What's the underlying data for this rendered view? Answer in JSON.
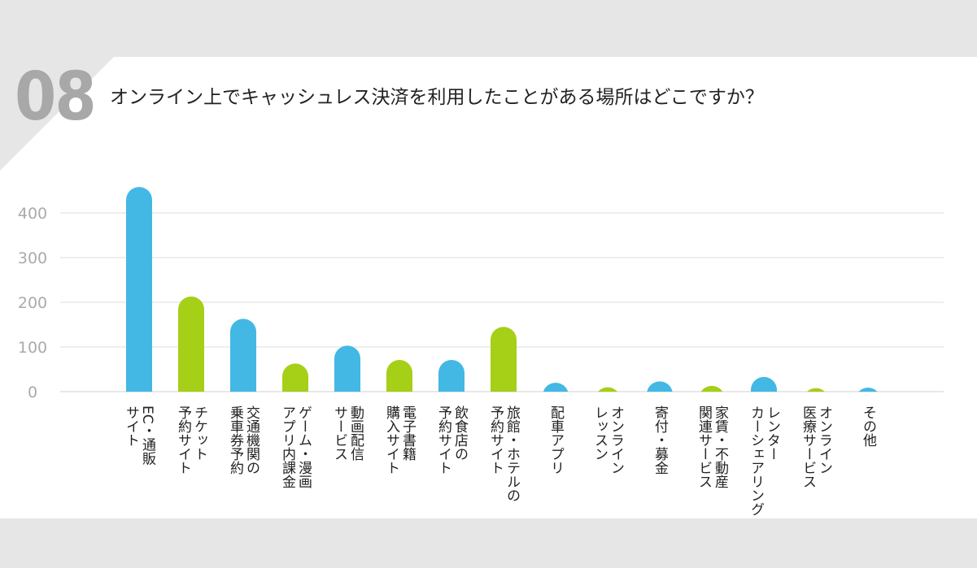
{
  "header": {
    "question_number": "08",
    "question": "オンライン上でキャッシュレス決済を利用したことがある場所はどこですか？"
  },
  "colors": {
    "blue": "#43b8e4",
    "green": "#a6cf17",
    "grid": "#dddddd",
    "tick": "#aaaaaa",
    "label": "#222222"
  },
  "chart_data": {
    "type": "bar",
    "title": "",
    "xlabel": "",
    "ylabel": "",
    "ylim": [
      0,
      460
    ],
    "yticks": [
      "0",
      "100",
      "200",
      "300",
      "400"
    ],
    "grid": true,
    "categories": [
      "EC・通販サイト",
      "チケット予約サイト",
      "交通機関の乗車券予約",
      "ゲーム・漫画アプリ内課金",
      "動画配信サービス",
      "電子書籍購入サイト",
      "飲食店の予約サイト",
      "旅館・ホテルの予約サイト",
      "配車アプリ",
      "オンラインレッスン",
      "寄付・募金",
      "家賃・不動産関連サービス",
      "レンターカーシェアリング",
      "オンライン医療サービス",
      "その他"
    ],
    "label_lines": [
      [
        "EC・通販",
        "サイト"
      ],
      [
        "チケット",
        "予約サイト"
      ],
      [
        "交通機関の",
        "乗車券予約"
      ],
      [
        "ゲーム・漫画",
        "アプリ内課金"
      ],
      [
        "動画配信",
        "サービス"
      ],
      [
        "電子書籍",
        "購入サイト"
      ],
      [
        "飲食店の",
        "予約サイト"
      ],
      [
        "旅館・ホテルの",
        "予約サイト"
      ],
      [
        "配車アプリ"
      ],
      [
        "オンライン",
        "レッスン"
      ],
      [
        "寄付・募金"
      ],
      [
        "家賃・不動産",
        "関連サービス"
      ],
      [
        "レンター",
        "カーシェアリング"
      ],
      [
        "オンライン",
        "医療サービス"
      ],
      [
        "その他"
      ]
    ],
    "values": [
      458,
      213,
      163,
      63,
      103,
      71,
      71,
      145,
      20,
      10,
      23,
      13,
      33,
      8,
      9
    ],
    "bar_colors": [
      "blue",
      "green",
      "blue",
      "green",
      "blue",
      "green",
      "blue",
      "green",
      "blue",
      "green",
      "blue",
      "green",
      "blue",
      "green",
      "blue"
    ]
  }
}
